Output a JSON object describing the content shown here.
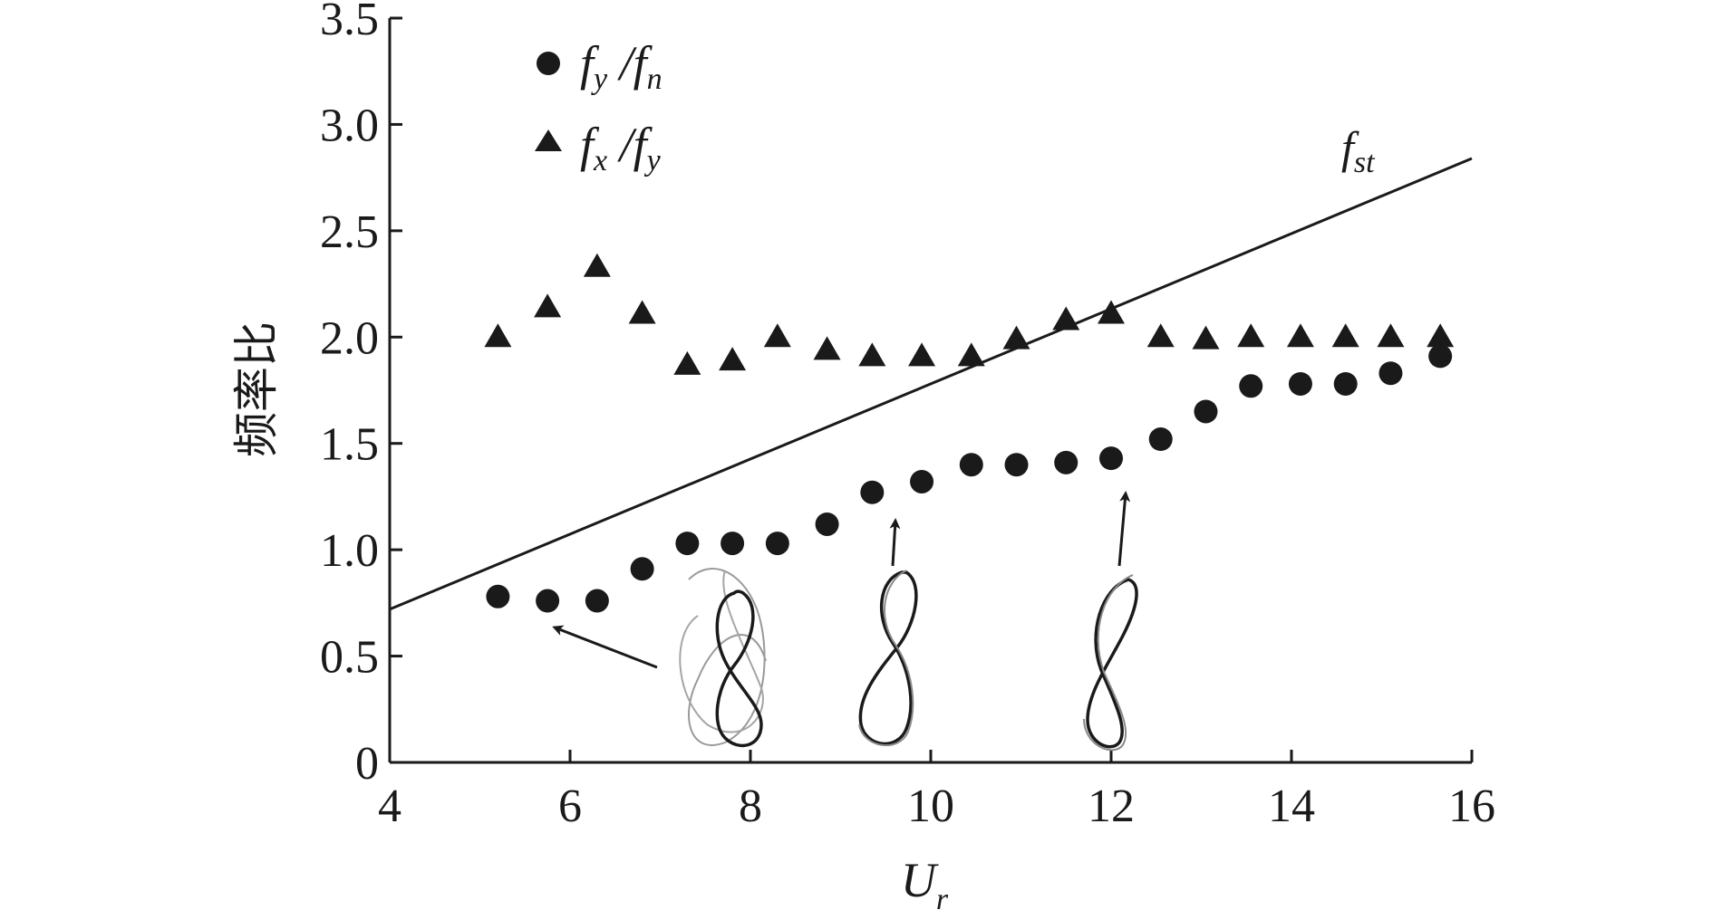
{
  "chart_data": {
    "type": "scatter",
    "xlabel": "U",
    "xlabel_sub": "r",
    "ylabel": "频率比",
    "xlim": [
      4,
      16
    ],
    "ylim": [
      0,
      3.5
    ],
    "x_ticks": [
      "4",
      "6",
      "8",
      "10",
      "12",
      "14",
      "16"
    ],
    "y_ticks": [
      "0",
      "0.5",
      "1.0",
      "1.5",
      "2.0",
      "2.5",
      "3.0",
      "3.5"
    ],
    "x_tick_values": [
      4,
      6,
      8,
      10,
      12,
      14,
      16
    ],
    "y_tick_values": [
      0,
      0.5,
      1.0,
      1.5,
      2.0,
      2.5,
      3.0,
      3.5
    ],
    "grid": false,
    "legend_position": "top-left",
    "series": [
      {
        "name": "f_y/f_n",
        "legend_main": [
          "f",
          "f"
        ],
        "legend_sub": [
          "y",
          "n"
        ],
        "marker": "circle",
        "x": [
          5.2,
          5.75,
          6.3,
          6.8,
          7.3,
          7.8,
          8.3,
          8.85,
          9.35,
          9.9,
          10.45,
          10.95,
          11.5,
          12.0,
          12.55,
          13.05,
          13.55,
          14.1,
          14.6,
          15.1,
          15.65
        ],
        "y": [
          0.78,
          0.76,
          0.76,
          0.91,
          1.03,
          1.03,
          1.03,
          1.12,
          1.27,
          1.32,
          1.4,
          1.4,
          1.41,
          1.43,
          1.52,
          1.65,
          1.77,
          1.78,
          1.78,
          1.83,
          1.91
        ]
      },
      {
        "name": "f_x/f_y",
        "legend_main": [
          "f",
          "f"
        ],
        "legend_sub": [
          "x",
          "y"
        ],
        "marker": "triangle",
        "x": [
          5.2,
          5.75,
          6.3,
          6.8,
          7.3,
          7.8,
          8.3,
          8.85,
          9.35,
          9.9,
          10.45,
          10.95,
          11.5,
          12.0,
          12.55,
          13.05,
          13.55,
          14.1,
          14.6,
          15.1,
          15.65
        ],
        "y": [
          2.0,
          2.14,
          2.33,
          2.11,
          1.87,
          1.89,
          2.0,
          1.94,
          1.91,
          1.91,
          1.91,
          1.99,
          2.08,
          2.11,
          2.0,
          1.99,
          2.0,
          2.0,
          2.0,
          2.0,
          2.0
        ]
      }
    ],
    "reference_line": {
      "label": "f",
      "label_sub": "st",
      "x": [
        4,
        16
      ],
      "y": [
        0.72,
        2.84
      ]
    },
    "annotations": [
      {
        "type": "trajectory-inset",
        "name": "figure-eight-irregular",
        "points_to": [
          5.75,
          0.76
        ]
      },
      {
        "type": "trajectory-inset",
        "name": "figure-eight-clean",
        "points_to": [
          9.8,
          1.22
        ]
      },
      {
        "type": "trajectory-inset",
        "name": "figure-eight-tilted",
        "points_to": [
          12.15,
          1.35
        ]
      }
    ]
  }
}
